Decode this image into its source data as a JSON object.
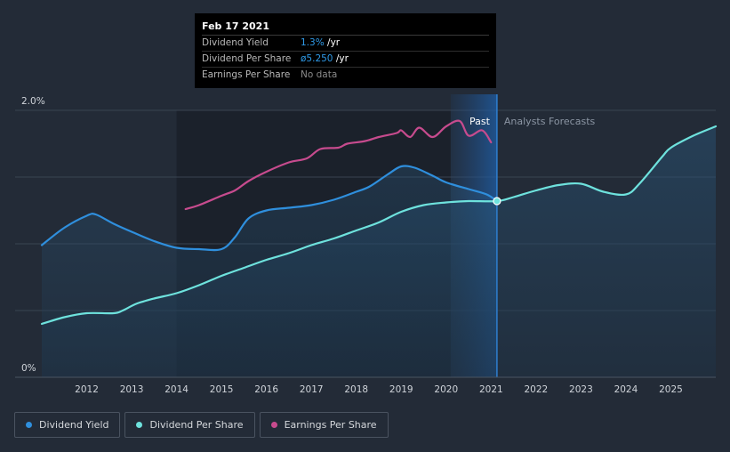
{
  "chart_data": {
    "type": "line",
    "title": "",
    "xlabel": "",
    "ylabel": "",
    "xlim": [
      2011.0,
      2026.0
    ],
    "ylim": [
      0,
      2.0
    ],
    "y_tick_labels": [
      {
        "value": 2.0,
        "label": "2.0%"
      },
      {
        "value": 0,
        "label": "0%"
      }
    ],
    "x_tick_labels": [
      {
        "value": 2012,
        "label": "2012"
      },
      {
        "value": 2013,
        "label": "2013"
      },
      {
        "value": 2014,
        "label": "2014"
      },
      {
        "value": 2015,
        "label": "2015"
      },
      {
        "value": 2016,
        "label": "2016"
      },
      {
        "value": 2017,
        "label": "2017"
      },
      {
        "value": 2018,
        "label": "2018"
      },
      {
        "value": 2019,
        "label": "2019"
      },
      {
        "value": 2020,
        "label": "2020"
      },
      {
        "value": 2021,
        "label": "2021"
      },
      {
        "value": 2022,
        "label": "2022"
      },
      {
        "value": 2023,
        "label": "2023"
      },
      {
        "value": 2024,
        "label": "2024"
      },
      {
        "value": 2025,
        "label": "2025"
      }
    ],
    "gridlines": [
      0,
      0.5,
      1.0,
      1.5,
      2.0
    ],
    "divider_x": 2021.13,
    "past_region_start": 2020.1,
    "past_label": "Past",
    "forecast_label": "Analysts Forecasts",
    "series": [
      {
        "name": "Dividend Yield",
        "color": "#2f8fdd",
        "fill": true,
        "points": [
          [
            2011.0,
            0.99
          ],
          [
            2011.5,
            1.12
          ],
          [
            2012.0,
            1.21
          ],
          [
            2012.2,
            1.22
          ],
          [
            2012.6,
            1.15
          ],
          [
            2013.0,
            1.09
          ],
          [
            2013.5,
            1.02
          ],
          [
            2014.0,
            0.97
          ],
          [
            2014.5,
            0.96
          ],
          [
            2015.0,
            0.96
          ],
          [
            2015.3,
            1.05
          ],
          [
            2015.6,
            1.19
          ],
          [
            2016.0,
            1.25
          ],
          [
            2016.5,
            1.27
          ],
          [
            2017.0,
            1.29
          ],
          [
            2017.5,
            1.33
          ],
          [
            2018.0,
            1.39
          ],
          [
            2018.3,
            1.43
          ],
          [
            2018.7,
            1.52
          ],
          [
            2019.0,
            1.58
          ],
          [
            2019.3,
            1.57
          ],
          [
            2019.7,
            1.51
          ],
          [
            2020.0,
            1.46
          ],
          [
            2020.5,
            1.41
          ],
          [
            2020.9,
            1.37
          ],
          [
            2021.13,
            1.32
          ]
        ]
      },
      {
        "name": "Dividend Per Share",
        "color": "#6ee2dd",
        "fill": true,
        "points": [
          [
            2011.0,
            0.4
          ],
          [
            2011.5,
            0.45
          ],
          [
            2012.0,
            0.48
          ],
          [
            2012.6,
            0.48
          ],
          [
            2012.8,
            0.5
          ],
          [
            2013.1,
            0.55
          ],
          [
            2013.5,
            0.59
          ],
          [
            2014.0,
            0.63
          ],
          [
            2014.5,
            0.69
          ],
          [
            2015.0,
            0.76
          ],
          [
            2015.5,
            0.82
          ],
          [
            2016.0,
            0.88
          ],
          [
            2016.5,
            0.93
          ],
          [
            2017.0,
            0.99
          ],
          [
            2017.5,
            1.04
          ],
          [
            2018.0,
            1.1
          ],
          [
            2018.5,
            1.16
          ],
          [
            2019.0,
            1.24
          ],
          [
            2019.5,
            1.29
          ],
          [
            2020.0,
            1.31
          ],
          [
            2020.5,
            1.32
          ],
          [
            2021.13,
            1.32
          ],
          [
            2021.5,
            1.35
          ],
          [
            2022.0,
            1.4
          ],
          [
            2022.5,
            1.44
          ],
          [
            2023.0,
            1.45
          ],
          [
            2023.5,
            1.39
          ],
          [
            2024.0,
            1.37
          ],
          [
            2024.3,
            1.45
          ],
          [
            2024.8,
            1.65
          ],
          [
            2025.0,
            1.72
          ],
          [
            2025.5,
            1.81
          ],
          [
            2026.0,
            1.88
          ]
        ]
      },
      {
        "name": "Earnings Per Share",
        "color": "#c74b8e",
        "fill": false,
        "points": [
          [
            2014.2,
            1.26
          ],
          [
            2014.5,
            1.29
          ],
          [
            2015.0,
            1.36
          ],
          [
            2015.3,
            1.4
          ],
          [
            2015.6,
            1.47
          ],
          [
            2016.0,
            1.54
          ],
          [
            2016.5,
            1.61
          ],
          [
            2016.9,
            1.64
          ],
          [
            2017.2,
            1.71
          ],
          [
            2017.6,
            1.72
          ],
          [
            2017.8,
            1.75
          ],
          [
            2018.2,
            1.77
          ],
          [
            2018.5,
            1.8
          ],
          [
            2018.9,
            1.83
          ],
          [
            2019.0,
            1.85
          ],
          [
            2019.2,
            1.8
          ],
          [
            2019.4,
            1.87
          ],
          [
            2019.7,
            1.8
          ],
          [
            2020.0,
            1.88
          ],
          [
            2020.3,
            1.92
          ],
          [
            2020.5,
            1.81
          ],
          [
            2020.8,
            1.85
          ],
          [
            2021.0,
            1.76
          ]
        ]
      }
    ],
    "highlight_point": {
      "x": 2021.13,
      "y": 1.32,
      "color": "#6ee2dd"
    }
  },
  "tooltip": {
    "date": "Feb 17 2021",
    "rows": [
      {
        "label": "Dividend Yield",
        "value_hl": "1.3%",
        "value_rest": " /yr"
      },
      {
        "label": "Dividend Per Share",
        "value_hl": "ø5.250",
        "value_rest": " /yr"
      },
      {
        "label": "Earnings Per Share",
        "value_hl": "",
        "value_rest": "No data"
      }
    ]
  },
  "legend": [
    {
      "label": "Dividend Yield",
      "color": "#2f8fdd"
    },
    {
      "label": "Dividend Per Share",
      "color": "#6ee2dd"
    },
    {
      "label": "Earnings Per Share",
      "color": "#c74b8e"
    }
  ]
}
